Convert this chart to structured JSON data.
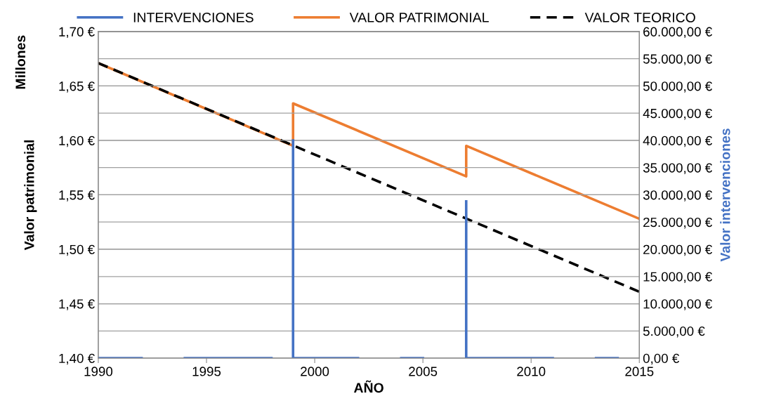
{
  "chart_data": {
    "type": "line",
    "xlabel": "AÑO",
    "ylabel": "Valor patrimonial",
    "y2label": "Valor intervenciones",
    "annotations": [
      "Millones"
    ],
    "xlim": [
      1990,
      2015
    ],
    "xticks": [
      1990,
      1995,
      2000,
      2005,
      2010,
      2015
    ],
    "ylim": [
      1.4,
      1.7
    ],
    "yticks": [
      {
        "value": 1.4,
        "label": "1,40 €"
      },
      {
        "value": 1.45,
        "label": "1,45 €"
      },
      {
        "value": 1.5,
        "label": "1,50 €"
      },
      {
        "value": 1.55,
        "label": "1,55 €"
      },
      {
        "value": 1.6,
        "label": "1,60 €"
      },
      {
        "value": 1.65,
        "label": "1,65 €"
      },
      {
        "value": 1.7,
        "label": "1,70 €"
      }
    ],
    "y2lim": [
      0,
      60000
    ],
    "y2ticks": [
      {
        "value": 0,
        "label": "0,00 €"
      },
      {
        "value": 5000,
        "label": "5.000,00 €"
      },
      {
        "value": 10000,
        "label": "10.000,00 €"
      },
      {
        "value": 15000,
        "label": "15.000,00 €"
      },
      {
        "value": 20000,
        "label": "20.000,00 €"
      },
      {
        "value": 25000,
        "label": "25.000,00 €"
      },
      {
        "value": 30000,
        "label": "30.000,00 €"
      },
      {
        "value": 35000,
        "label": "35.000,00 €"
      },
      {
        "value": 40000,
        "label": "40.000,00 €"
      },
      {
        "value": 45000,
        "label": "45.000,00 €"
      },
      {
        "value": 50000,
        "label": "50.000,00 €"
      },
      {
        "value": 55000,
        "label": "55.000,00 €"
      },
      {
        "value": 60000,
        "label": "60.000,00 €"
      }
    ],
    "grid": "y",
    "legend": "top",
    "marker": "none",
    "series": [
      {
        "name": "INTERVENCIONES",
        "color": "#4472c4",
        "axis": "y2",
        "line_style": "solid",
        "x": [
          1990,
          1992,
          1993,
          1994,
          1998,
          1998.5,
          1999,
          1999,
          2002,
          2003,
          2004,
          2005,
          2006,
          2007,
          2007,
          2011,
          2012,
          2013,
          2014
        ],
        "values": [
          0,
          0,
          null,
          0,
          0,
          null,
          40000,
          0,
          0,
          null,
          0,
          0,
          null,
          28800,
          0,
          0,
          null,
          0,
          0
        ]
      },
      {
        "name": "VALOR PATRIMONIAL",
        "color": "#ed7d31",
        "line_style": "solid",
        "x": [
          1990,
          1999,
          1999,
          2007,
          2007,
          2015
        ],
        "values": [
          1.671,
          1.595,
          1.634,
          1.567,
          1.595,
          1.528
        ]
      },
      {
        "name": "VALOR TEORICO",
        "color": "#000000",
        "line_style": "dashed",
        "x": [
          1990,
          2015
        ],
        "values": [
          1.671,
          1.461
        ]
      }
    ]
  }
}
